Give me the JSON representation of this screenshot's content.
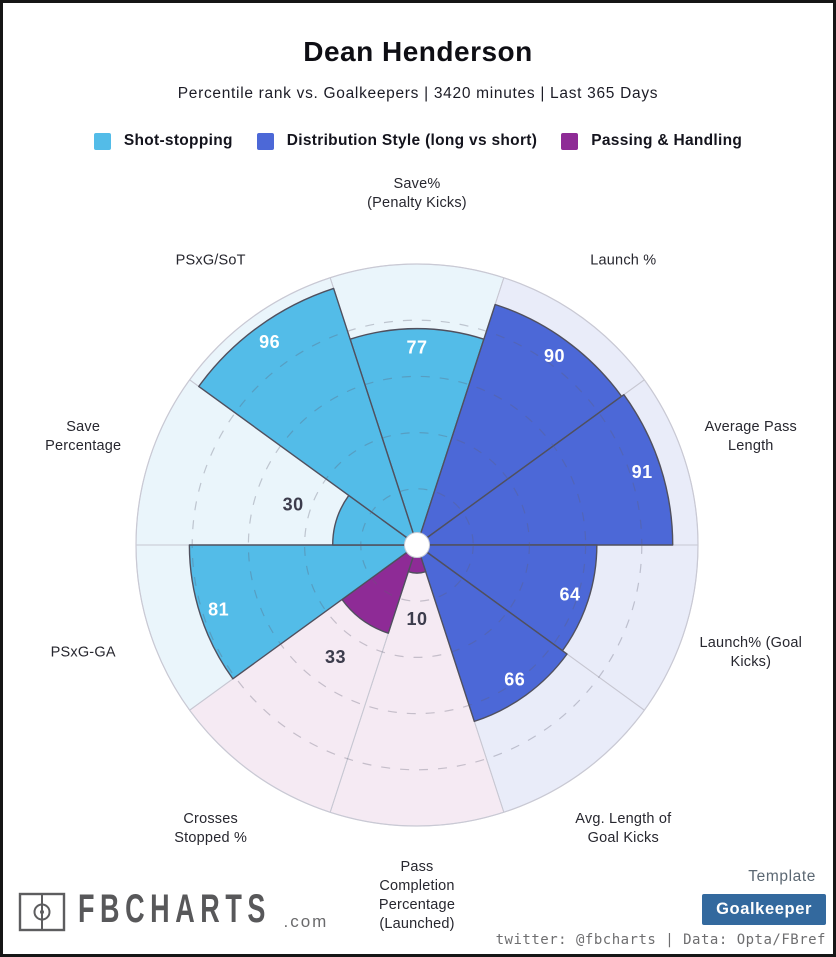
{
  "header": {
    "title": "Dean Henderson",
    "subtitle": "Percentile rank vs. Goalkeepers | 3420 minutes | Last 365 Days"
  },
  "chart_data": {
    "type": "pizza-percentile-radar",
    "title": "Dean Henderson",
    "scale": {
      "min": 0,
      "max": 100
    },
    "grid_rings_pct": [
      20,
      40,
      60,
      80
    ],
    "grid_style": "dashed",
    "groups": [
      {
        "id": "shot",
        "label": "Shot-stopping",
        "color": "#53BCE8",
        "bg": "#EAF5FB"
      },
      {
        "id": "dist",
        "label": "Distribution Style (long vs short)",
        "color": "#4C68D7",
        "bg": "#E9ECF9"
      },
      {
        "id": "pass",
        "label": "Passing & Handling",
        "color": "#8E2B96",
        "bg": "#F5EAF3"
      }
    ],
    "slices": [
      {
        "label": "Save% (Penalty Kicks)",
        "label_lines": [
          "Save%",
          "(Penalty Kicks)"
        ],
        "value": 77,
        "group": "shot"
      },
      {
        "label": "Launch %",
        "label_lines": [
          "Launch %"
        ],
        "value": 90,
        "group": "dist"
      },
      {
        "label": "Average Pass Length",
        "label_lines": [
          "Average Pass",
          "Length"
        ],
        "value": 91,
        "group": "dist"
      },
      {
        "label": "Launch% (Goal Kicks)",
        "label_lines": [
          "Launch% (Goal",
          "Kicks)"
        ],
        "value": 64,
        "group": "dist"
      },
      {
        "label": "Avg. Length of Goal Kicks",
        "label_lines": [
          "Avg. Length of",
          "Goal Kicks"
        ],
        "value": 66,
        "group": "dist"
      },
      {
        "label": "Pass Completion Percentage (Launched)",
        "label_lines": [
          "Pass",
          "Completion",
          "Percentage",
          "(Launched)"
        ],
        "value": 10,
        "group": "pass"
      },
      {
        "label": "Crosses Stopped %",
        "label_lines": [
          "Crosses",
          "Stopped %"
        ],
        "value": 33,
        "group": "pass"
      },
      {
        "label": "PSxG-GA",
        "label_lines": [
          "PSxG-GA"
        ],
        "value": 81,
        "group": "shot"
      },
      {
        "label": "Save Percentage",
        "label_lines": [
          "Save",
          "Percentage"
        ],
        "value": 30,
        "group": "shot"
      },
      {
        "label": "PSxG/SoT",
        "label_lines": [
          "PSxG/SoT"
        ],
        "value": 96,
        "group": "shot"
      }
    ]
  },
  "footer": {
    "logo_text": "FBCHARTS",
    "logo_suffix": ".com",
    "template_label": "Template",
    "template_value": "Goalkeeper",
    "button_color": "#33699E",
    "credit": "twitter: @fbcharts | Data: Opta/FBref"
  }
}
